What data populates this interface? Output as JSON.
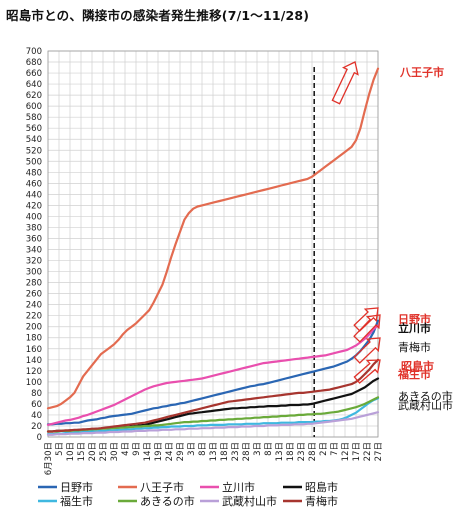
{
  "title": "昭島市との、隣接市の感染者発生推移(7/1～11/28)",
  "chart_data": {
    "type": "line",
    "title": "昭島市との、隣接市の感染者発生推移(7/1～11/28)",
    "xlabel": "",
    "ylabel": "",
    "ylim": [
      0,
      700
    ],
    "ytick_step": 20,
    "grid": true,
    "x_ticks": [
      "6月30日",
      "5日",
      "10日",
      "15日",
      "20日",
      "25日",
      "30日",
      "4日",
      "9日",
      "14日",
      "19日",
      "24日",
      "29日",
      "3日",
      "8日",
      "13日",
      "18日",
      "23日",
      "28日",
      "3日",
      "8日",
      "13日",
      "18日",
      "23日",
      "28日",
      "2日",
      "7日",
      "12日",
      "17日",
      "22日",
      "27日"
    ],
    "x": [
      0,
      2,
      4,
      6,
      8,
      10,
      12,
      14,
      16,
      18,
      20,
      22,
      24,
      26,
      28,
      30,
      32,
      34,
      36,
      38,
      40,
      42,
      44,
      46,
      48,
      50,
      52,
      54,
      56,
      58,
      60,
      62,
      64,
      66,
      68,
      70,
      72,
      74,
      76,
      78,
      80,
      82,
      84,
      86,
      88,
      90,
      92,
      94,
      96,
      98,
      100,
      102,
      104,
      106,
      108,
      110,
      112,
      114,
      116,
      118,
      120,
      122,
      124,
      126,
      128,
      130,
      132,
      134,
      136,
      138,
      140,
      142,
      144,
      146,
      148,
      150
    ],
    "marker": {
      "x": 121,
      "label": ""
    },
    "legend_position": "bottom",
    "series": [
      {
        "name": "日野市",
        "color": "#2a66b3",
        "values": [
          23,
          23,
          24,
          24,
          25,
          25,
          26,
          26,
          28,
          30,
          31,
          32,
          34,
          35,
          37,
          38,
          39,
          40,
          41,
          42,
          44,
          46,
          48,
          50,
          52,
          53,
          55,
          56,
          58,
          59,
          61,
          62,
          64,
          66,
          68,
          70,
          72,
          74,
          76,
          78,
          80,
          82,
          84,
          86,
          88,
          90,
          92,
          93,
          95,
          96,
          98,
          100,
          102,
          104,
          106,
          108,
          110,
          112,
          114,
          116,
          118,
          120,
          122,
          124,
          126,
          128,
          131,
          134,
          137,
          142,
          148,
          156,
          166,
          176,
          190,
          211
        ]
      },
      {
        "name": "八王子市",
        "color": "#e36b50",
        "values": [
          52,
          54,
          56,
          60,
          66,
          72,
          80,
          95,
          110,
          120,
          130,
          140,
          150,
          156,
          162,
          168,
          176,
          186,
          194,
          200,
          206,
          214,
          222,
          230,
          244,
          260,
          276,
          300,
          326,
          350,
          372,
          394,
          406,
          414,
          418,
          420,
          422,
          424,
          426,
          428,
          430,
          432,
          434,
          436,
          438,
          440,
          442,
          444,
          446,
          448,
          450,
          452,
          454,
          456,
          458,
          460,
          462,
          464,
          466,
          468,
          472,
          478,
          484,
          490,
          496,
          502,
          508,
          514,
          520,
          526,
          538,
          560,
          592,
          622,
          648,
          668
        ]
      },
      {
        "name": "立川市",
        "color": "#e94fae",
        "values": [
          22,
          24,
          26,
          28,
          30,
          31,
          33,
          35,
          38,
          40,
          43,
          46,
          49,
          52,
          55,
          58,
          62,
          66,
          70,
          74,
          78,
          82,
          86,
          89,
          92,
          94,
          96,
          98,
          99,
          100,
          101,
          102,
          103,
          104,
          105,
          106,
          108,
          110,
          112,
          114,
          116,
          118,
          120,
          122,
          124,
          126,
          128,
          130,
          132,
          134,
          135,
          136,
          137,
          138,
          139,
          140,
          141,
          142,
          143,
          144,
          145,
          146,
          147,
          148,
          150,
          152,
          154,
          156,
          158,
          162,
          166,
          172,
          178,
          186,
          196,
          202
        ]
      },
      {
        "name": "昭島市",
        "color": "#111111",
        "values": [
          10,
          10,
          11,
          11,
          11,
          12,
          12,
          13,
          13,
          14,
          14,
          15,
          15,
          16,
          16,
          17,
          17,
          18,
          18,
          19,
          20,
          21,
          22,
          24,
          26,
          28,
          30,
          32,
          34,
          36,
          38,
          40,
          42,
          43,
          44,
          45,
          46,
          47,
          48,
          49,
          50,
          51,
          52,
          52,
          53,
          53,
          54,
          54,
          55,
          55,
          56,
          56,
          56,
          57,
          57,
          58,
          58,
          58,
          59,
          59,
          60,
          62,
          64,
          66,
          68,
          70,
          72,
          74,
          76,
          78,
          82,
          86,
          90,
          96,
          102,
          106
        ]
      },
      {
        "name": "福生市",
        "color": "#3fb8e0",
        "values": [
          5,
          5,
          6,
          6,
          7,
          7,
          8,
          8,
          9,
          9,
          10,
          10,
          11,
          11,
          12,
          12,
          13,
          13,
          14,
          14,
          15,
          15,
          16,
          16,
          17,
          17,
          18,
          18,
          19,
          19,
          19,
          20,
          20,
          20,
          21,
          21,
          21,
          22,
          22,
          22,
          22,
          23,
          23,
          23,
          23,
          24,
          24,
          24,
          24,
          25,
          25,
          25,
          25,
          26,
          26,
          26,
          26,
          27,
          27,
          27,
          27,
          28,
          28,
          29,
          29,
          30,
          31,
          33,
          36,
          40,
          44,
          50,
          56,
          62,
          67,
          70
        ]
      },
      {
        "name": "あきるの市",
        "color": "#6aaa3a",
        "values": [
          10,
          10,
          10,
          11,
          11,
          11,
          12,
          12,
          13,
          13,
          14,
          14,
          15,
          15,
          16,
          16,
          17,
          17,
          18,
          18,
          19,
          19,
          20,
          20,
          21,
          21,
          22,
          23,
          24,
          25,
          26,
          27,
          27,
          28,
          28,
          29,
          29,
          30,
          30,
          31,
          31,
          32,
          32,
          33,
          33,
          34,
          34,
          35,
          35,
          36,
          36,
          37,
          37,
          38,
          38,
          39,
          39,
          40,
          40,
          41,
          41,
          42,
          42,
          43,
          44,
          45,
          46,
          48,
          50,
          52,
          54,
          57,
          60,
          64,
          68,
          72
        ]
      },
      {
        "name": "武蔵村山市",
        "color": "#b9a0d8",
        "values": [
          4,
          4,
          5,
          5,
          5,
          6,
          6,
          6,
          7,
          7,
          7,
          8,
          8,
          8,
          9,
          9,
          9,
          10,
          10,
          10,
          11,
          11,
          11,
          12,
          12,
          12,
          13,
          13,
          13,
          14,
          14,
          14,
          15,
          15,
          15,
          16,
          16,
          16,
          17,
          17,
          17,
          18,
          18,
          18,
          19,
          19,
          19,
          20,
          20,
          20,
          21,
          21,
          21,
          22,
          22,
          22,
          23,
          23,
          23,
          24,
          24,
          25,
          26,
          27,
          28,
          29,
          30,
          31,
          32,
          33,
          35,
          37,
          39,
          41,
          43,
          45
        ]
      },
      {
        "name": "青梅市",
        "color": "#a7352f",
        "values": [
          10,
          10,
          11,
          11,
          12,
          12,
          13,
          13,
          14,
          14,
          15,
          15,
          16,
          17,
          18,
          19,
          20,
          21,
          22,
          23,
          24,
          25,
          26,
          28,
          30,
          32,
          34,
          36,
          38,
          40,
          42,
          44,
          46,
          48,
          50,
          52,
          54,
          56,
          58,
          60,
          62,
          64,
          65,
          66,
          67,
          68,
          69,
          70,
          71,
          72,
          73,
          74,
          75,
          76,
          77,
          78,
          79,
          80,
          80,
          81,
          82,
          83,
          84,
          85,
          86,
          88,
          90,
          92,
          94,
          96,
          100,
          106,
          114,
          122,
          132,
          140
        ]
      }
    ],
    "right_labels": [
      {
        "text": "八王子市",
        "y": 660,
        "color": "#e0322a",
        "bold": true
      },
      {
        "text": "日野市",
        "y": 212,
        "color": "#e0322a",
        "bold": true
      },
      {
        "text": "立川市",
        "y": 195,
        "color": "#111111",
        "bold": true
      },
      {
        "text": "青梅市",
        "y": 162,
        "color": "#111111",
        "bold": false
      },
      {
        "text": "昭島市",
        "y": 127,
        "color": "#e0322a",
        "bold": true
      },
      {
        "text": "福生市",
        "y": 112,
        "color": "#e0322a",
        "bold": true
      },
      {
        "text": "あきるの市",
        "y": 72,
        "color": "#111111",
        "bold": false
      },
      {
        "text": "武蔵村山市",
        "y": 56,
        "color": "#111111",
        "bold": false
      }
    ]
  }
}
